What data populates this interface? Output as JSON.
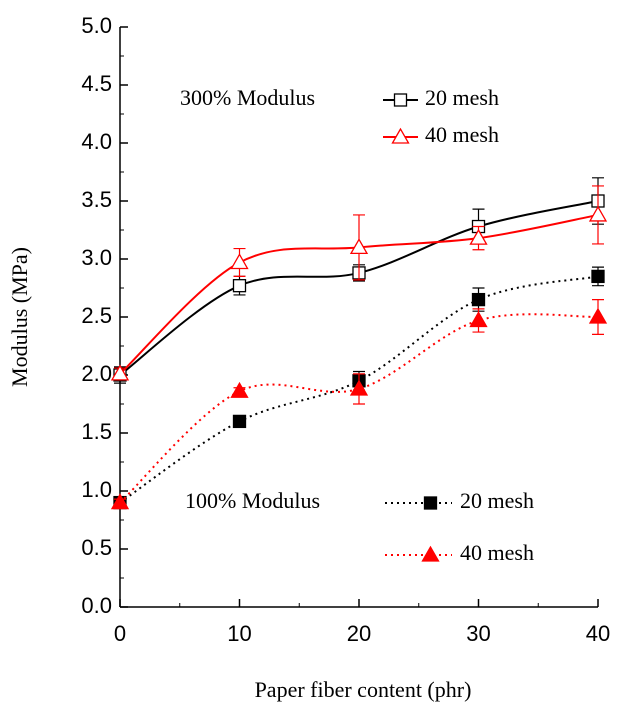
{
  "chart_data": {
    "type": "line",
    "x_label": "Paper fiber content (phr)",
    "y_label": "Modulus (MPa)",
    "x": [
      0,
      10,
      20,
      30,
      40
    ],
    "xlim": [
      0,
      40
    ],
    "xticks": [
      0,
      10,
      20,
      30,
      40
    ],
    "ylim": [
      0,
      5
    ],
    "yticks": [
      {
        "value": 0,
        "label": "0.0"
      },
      {
        "value": 0.5,
        "label": "0.5"
      },
      {
        "value": 1,
        "label": "1.0"
      },
      {
        "value": 1.5,
        "label": "1.5"
      },
      {
        "value": 2,
        "label": "2.0"
      },
      {
        "value": 2.5,
        "label": "2.5"
      },
      {
        "value": 3,
        "label": "3.0"
      },
      {
        "value": 3.5,
        "label": "3.5"
      },
      {
        "value": 4,
        "label": "4.0"
      },
      {
        "value": 4.5,
        "label": "4.5"
      },
      {
        "value": 5,
        "label": "5.0"
      }
    ],
    "groups": [
      {
        "label": "300% Modulus",
        "series": [
          {
            "name": "20 mesh",
            "color": "#000000",
            "marker": "square",
            "filled": false,
            "dash": "solid",
            "values": [
              2.0,
              2.77,
              2.88,
              3.28,
              3.5
            ],
            "errors": [
              0.07,
              0.08,
              0.07,
              0.15,
              0.2
            ]
          },
          {
            "name": "40 mesh",
            "color": "#ff0000",
            "marker": "triangle",
            "filled": false,
            "dash": "solid",
            "values": [
              2.01,
              2.97,
              3.1,
              3.18,
              3.38
            ],
            "errors": [
              0.05,
              0.12,
              0.28,
              0.1,
              0.25
            ]
          }
        ]
      },
      {
        "label": "100% Modulus",
        "series": [
          {
            "name": "20 mesh",
            "color": "#000000",
            "marker": "square",
            "filled": true,
            "dash": "dotted",
            "values": [
              0.9,
              1.6,
              1.95,
              2.65,
              2.85
            ],
            "errors": [
              0.02,
              0.03,
              0.08,
              0.1,
              0.08
            ]
          },
          {
            "name": "40 mesh",
            "color": "#ff0000",
            "marker": "triangle",
            "filled": true,
            "dash": "dotted",
            "values": [
              0.9,
              1.86,
              1.88,
              2.47,
              2.5
            ],
            "errors": [
              0.03,
              0.03,
              0.13,
              0.1,
              0.15
            ]
          }
        ]
      }
    ]
  }
}
